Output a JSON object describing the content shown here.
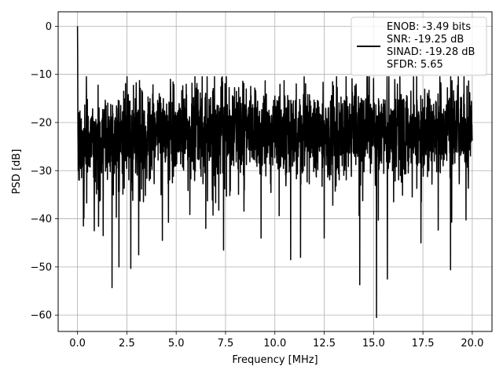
{
  "chart_data": {
    "type": "line",
    "title": "",
    "xlabel": "Frequency [MHz]",
    "ylabel": "PSD [dB]",
    "xlim": [
      -0.98,
      21.0
    ],
    "ylim": [
      -63.4,
      3.0
    ],
    "xticks": [
      0.0,
      2.5,
      5.0,
      7.5,
      10.0,
      12.5,
      15.0,
      17.5,
      20.0
    ],
    "xtick_labels": [
      "0.0",
      "2.5",
      "5.0",
      "7.5",
      "10.0",
      "12.5",
      "15.0",
      "17.5",
      "20.0"
    ],
    "yticks": [
      0,
      -10,
      -20,
      -30,
      -40,
      -50,
      -60
    ],
    "ytick_labels": [
      "0",
      "−10",
      "−20",
      "−30",
      "−40",
      "−50",
      "−60"
    ],
    "grid": true,
    "legend": {
      "placement": "top-right",
      "entries": [
        "ENOB: -3.49 bits",
        "SNR: -19.25 dB",
        "SINAD: -19.28 dB",
        "SFDR: 5.65"
      ]
    },
    "series": [
      {
        "color": "#000000",
        "x_range": [
          0.0,
          20.0
        ],
        "noise_floor_db": -21.5,
        "noise_floor_range_db": [
          -35,
          -12
        ],
        "peaks": [
          {
            "x": 0.0,
            "y": 0.0
          }
        ],
        "notable_dips": [
          {
            "x": 0.3,
            "y": -41.5
          },
          {
            "x": 0.85,
            "y": -42.5
          },
          {
            "x": 1.3,
            "y": -43.5
          },
          {
            "x": 1.75,
            "y": -54.3
          },
          {
            "x": 2.1,
            "y": -50.0
          },
          {
            "x": 2.7,
            "y": -50.3
          },
          {
            "x": 3.1,
            "y": -47.5
          },
          {
            "x": 4.3,
            "y": -44.5
          },
          {
            "x": 6.5,
            "y": -42.0
          },
          {
            "x": 7.4,
            "y": -46.5
          },
          {
            "x": 9.3,
            "y": -44.0
          },
          {
            "x": 10.8,
            "y": -48.5
          },
          {
            "x": 11.3,
            "y": -48.0
          },
          {
            "x": 12.5,
            "y": -44.0
          },
          {
            "x": 14.3,
            "y": -53.7
          },
          {
            "x": 15.15,
            "y": -60.5
          },
          {
            "x": 15.7,
            "y": -52.5
          },
          {
            "x": 17.4,
            "y": -45.0
          },
          {
            "x": 18.9,
            "y": -50.6
          }
        ]
      }
    ]
  }
}
